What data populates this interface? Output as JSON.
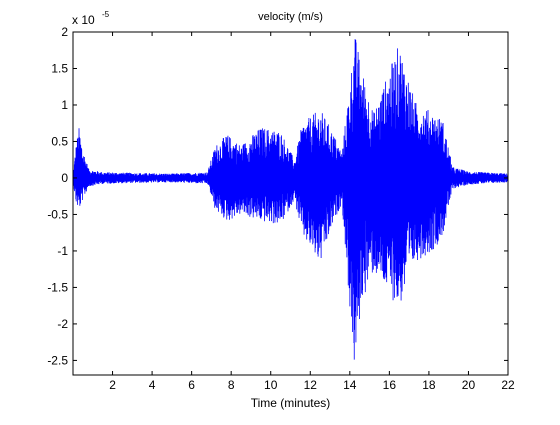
{
  "chart_data": {
    "type": "line",
    "title": "velocity (m/s)",
    "xlabel": "Time (minutes)",
    "ylabel": "",
    "y_exponent_prefix": "x 10",
    "y_exponent_power": "-5",
    "xlim": [
      0,
      22
    ],
    "ylim": [
      -2.7,
      2.0
    ],
    "x_ticks": [
      2,
      4,
      6,
      8,
      10,
      12,
      14,
      16,
      18,
      20,
      22
    ],
    "x_tick_labels": [
      "2",
      "4",
      "6",
      "8",
      "10",
      "12",
      "14",
      "16",
      "18",
      "20",
      "22"
    ],
    "y_ticks": [
      -2.5,
      -2,
      -1.5,
      -1,
      -0.5,
      0,
      0.5,
      1,
      1.5,
      2
    ],
    "y_tick_labels": [
      "-2.5",
      "-2",
      "-1.5",
      "-1",
      "-0.5",
      "0",
      "0.5",
      "1",
      "1.5",
      "2"
    ],
    "grid": false,
    "line_color": "#0000ff",
    "series": [
      {
        "envelope": [
          {
            "t": 0.0,
            "upper": 0.05,
            "lower": -0.05
          },
          {
            "t": 0.15,
            "upper": 0.45,
            "lower": -0.35
          },
          {
            "t": 0.3,
            "upper": 0.7,
            "lower": -0.45
          },
          {
            "t": 0.5,
            "upper": 0.4,
            "lower": -0.3
          },
          {
            "t": 0.8,
            "upper": 0.12,
            "lower": -0.12
          },
          {
            "t": 1.5,
            "upper": 0.08,
            "lower": -0.08
          },
          {
            "t": 3.0,
            "upper": 0.07,
            "lower": -0.07
          },
          {
            "t": 5.0,
            "upper": 0.06,
            "lower": -0.06
          },
          {
            "t": 6.8,
            "upper": 0.08,
            "lower": -0.08
          },
          {
            "t": 7.2,
            "upper": 0.45,
            "lower": -0.45
          },
          {
            "t": 7.8,
            "upper": 0.6,
            "lower": -0.6
          },
          {
            "t": 8.5,
            "upper": 0.45,
            "lower": -0.5
          },
          {
            "t": 9.5,
            "upper": 0.7,
            "lower": -0.6
          },
          {
            "t": 10.5,
            "upper": 0.65,
            "lower": -0.65
          },
          {
            "t": 11.2,
            "upper": 0.25,
            "lower": -0.3
          },
          {
            "t": 11.6,
            "upper": 0.75,
            "lower": -0.8
          },
          {
            "t": 12.5,
            "upper": 0.95,
            "lower": -1.2
          },
          {
            "t": 13.2,
            "upper": 0.6,
            "lower": -0.6
          },
          {
            "t": 13.6,
            "upper": 0.35,
            "lower": -0.35
          },
          {
            "t": 14.0,
            "upper": 1.3,
            "lower": -1.8
          },
          {
            "t": 14.25,
            "upper": 2.0,
            "lower": -2.7
          },
          {
            "t": 14.6,
            "upper": 1.5,
            "lower": -1.7
          },
          {
            "t": 15.2,
            "upper": 0.9,
            "lower": -1.3
          },
          {
            "t": 16.5,
            "upper": 1.85,
            "lower": -1.8
          },
          {
            "t": 17.3,
            "upper": 1.05,
            "lower": -1.15
          },
          {
            "t": 18.2,
            "upper": 0.9,
            "lower": -1.0
          },
          {
            "t": 18.7,
            "upper": 0.8,
            "lower": -0.8
          },
          {
            "t": 19.2,
            "upper": 0.15,
            "lower": -0.15
          },
          {
            "t": 20.0,
            "upper": 0.09,
            "lower": -0.09
          },
          {
            "t": 22.0,
            "upper": 0.06,
            "lower": -0.06
          }
        ]
      }
    ]
  }
}
